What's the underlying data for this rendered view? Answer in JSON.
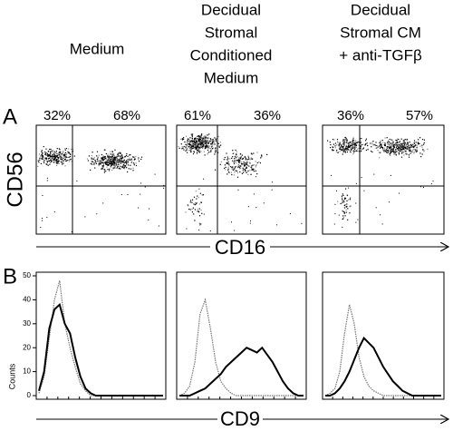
{
  "columns": [
    {
      "lines": [
        "Medium"
      ],
      "percentages": [
        "32%",
        "68%"
      ]
    },
    {
      "lines": [
        "Decidual",
        "Stromal",
        "Conditioned",
        "Medium"
      ],
      "percentages": [
        "61%",
        "36%"
      ]
    },
    {
      "lines": [
        "Decidual",
        "Stromal CM",
        "+ anti-TGFβ"
      ],
      "percentages": [
        "36%",
        "57%"
      ]
    }
  ],
  "panel_a": {
    "letter": "A",
    "y_label": "CD56",
    "x_label": "CD16"
  },
  "panel_b": {
    "letter": "B",
    "y_label": "Counts",
    "x_label": "CD9",
    "ylim": [
      0,
      50
    ],
    "yticks": [
      0,
      10,
      20,
      30,
      40,
      50
    ]
  },
  "histograms": [
    {
      "solid": [
        2,
        10,
        28,
        36,
        38,
        30,
        26,
        16,
        8,
        3,
        1,
        0,
        0,
        0,
        0,
        0,
        0,
        0,
        0,
        0,
        0,
        0,
        0,
        0,
        0
      ],
      "dotted": [
        1,
        8,
        24,
        40,
        48,
        30,
        20,
        12,
        5,
        2,
        0,
        0,
        0,
        0,
        0,
        0,
        0,
        0,
        0,
        0,
        0,
        0,
        0,
        0,
        0
      ]
    },
    {
      "solid": [
        0,
        0,
        0,
        1,
        2,
        3,
        5,
        7,
        9,
        12,
        14,
        16,
        18,
        20,
        19,
        18,
        20,
        17,
        14,
        10,
        6,
        3,
        1,
        0,
        0
      ],
      "dotted": [
        0,
        1,
        4,
        14,
        34,
        40,
        28,
        14,
        6,
        3,
        1,
        0,
        0,
        0,
        0,
        0,
        0,
        0,
        0,
        0,
        0,
        0,
        0,
        0,
        0
      ]
    },
    {
      "solid": [
        0,
        0,
        1,
        3,
        6,
        10,
        15,
        20,
        24,
        22,
        20,
        16,
        12,
        9,
        6,
        4,
        2,
        1,
        0,
        0,
        0,
        0,
        0,
        0,
        0
      ],
      "dotted": [
        0,
        1,
        3,
        10,
        26,
        38,
        30,
        16,
        8,
        4,
        2,
        1,
        0,
        0,
        0,
        0,
        0,
        0,
        0,
        0,
        0,
        0,
        0,
        0,
        0
      ]
    }
  ]
}
